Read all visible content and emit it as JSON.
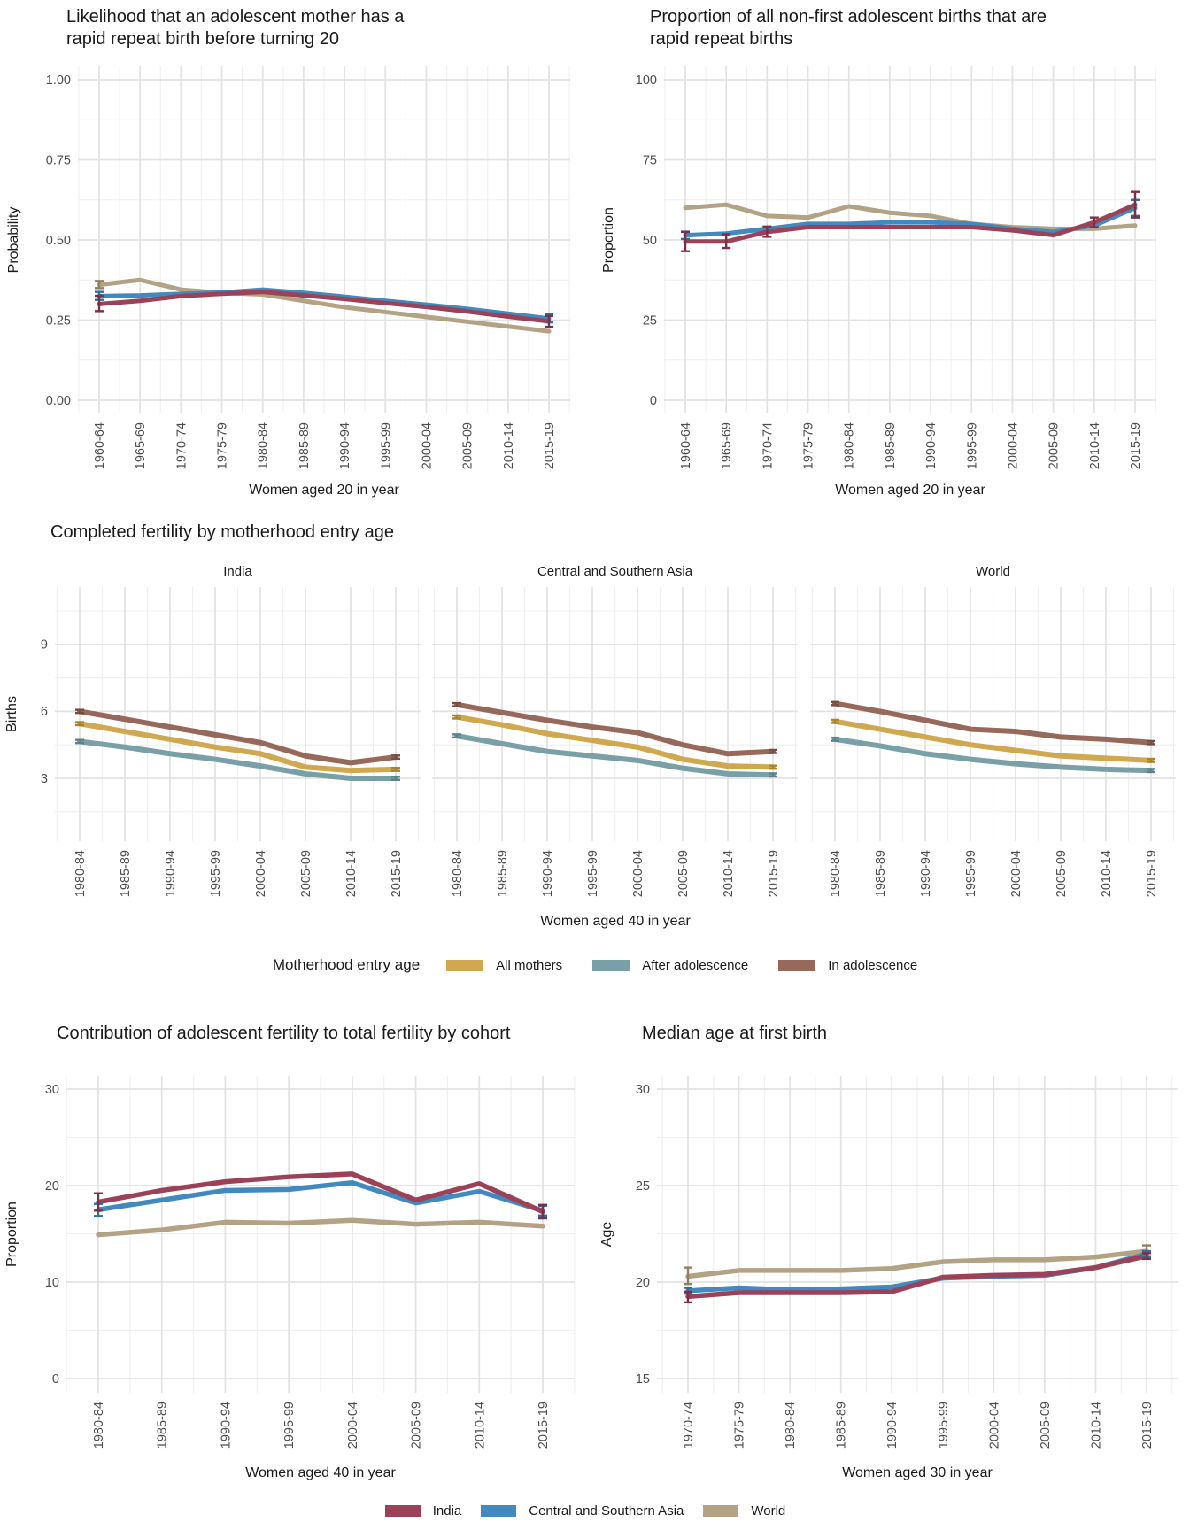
{
  "palette": {
    "india": "#9B4258",
    "india_dark": "#7C3048",
    "csa": "#4189BE",
    "csa_dark": "#2D6E9E",
    "world": "#B3A384",
    "world_dark": "#8F8063",
    "gold": "#D0A84F",
    "gold_dark": "#A9842F",
    "teal": "#7AA0A7",
    "teal_dark": "#5C838B",
    "brown": "#96695A",
    "brown_dark": "#774F41",
    "grid_major": "#E2E2E2",
    "grid_minor": "#EFEFEF",
    "text_dark": "#1A1A1A",
    "text_tick": "#4D4D4D"
  },
  "chart_data": [
    {
      "id": "rrb_likelihood",
      "type": "line",
      "title_lines": [
        "Likelihood that an adolescent mother has a",
        "rapid repeat birth before turning 20"
      ],
      "ylabel": "Probability",
      "xlabel": "Women aged 20 in year",
      "ylim": [
        0,
        1
      ],
      "grid": true,
      "legend_position": "bottom-shared",
      "yticks": [
        {
          "v": 0,
          "label": "0.00"
        },
        {
          "v": 0.25,
          "label": "0.25"
        },
        {
          "v": 0.5,
          "label": "0.50"
        },
        {
          "v": 0.75,
          "label": "0.75"
        },
        {
          "v": 1,
          "label": "1.00"
        }
      ],
      "categories": [
        "1960-64",
        "1965-69",
        "1970-74",
        "1975-79",
        "1980-84",
        "1985-89",
        "1990-94",
        "1995-99",
        "2000-04",
        "2005-09",
        "2010-14",
        "2015-19"
      ],
      "series": [
        {
          "name": "World",
          "color": "world",
          "err_color": "world_dark",
          "values": [
            0.36,
            0.375,
            0.345,
            0.335,
            0.33,
            0.31,
            0.29,
            0.275,
            0.26,
            0.245,
            0.23,
            0.215
          ],
          "errors": [
            {
              "i": 0,
              "lo": 0.35,
              "hi": 0.372
            }
          ]
        },
        {
          "name": "Central and Southern Asia",
          "color": "csa",
          "err_color": "csa_dark",
          "values": [
            0.325,
            0.327,
            0.332,
            0.336,
            0.345,
            0.335,
            0.323,
            0.31,
            0.298,
            0.285,
            0.27,
            0.255
          ],
          "errors": [
            {
              "i": 0,
              "lo": 0.313,
              "hi": 0.338
            },
            {
              "i": 11,
              "lo": 0.243,
              "hi": 0.268
            }
          ]
        },
        {
          "name": "India",
          "color": "india",
          "err_color": "india_dark",
          "values": [
            0.3,
            0.31,
            0.325,
            0.332,
            0.338,
            0.327,
            0.316,
            0.303,
            0.291,
            0.277,
            0.261,
            0.246
          ],
          "errors": [
            {
              "i": 0,
              "lo": 0.278,
              "hi": 0.326
            },
            {
              "i": 11,
              "lo": 0.229,
              "hi": 0.263
            }
          ]
        }
      ]
    },
    {
      "id": "rrb_proportion",
      "type": "line",
      "title_lines": [
        "Proportion of all non-first adolescent births that are",
        "rapid repeat births"
      ],
      "ylabel": "Proportion",
      "xlabel": "Women aged 20 in year",
      "ylim": [
        0,
        100
      ],
      "grid": true,
      "legend_position": "bottom-shared",
      "yticks": [
        {
          "v": 0,
          "label": "0"
        },
        {
          "v": 25,
          "label": "25"
        },
        {
          "v": 50,
          "label": "50"
        },
        {
          "v": 75,
          "label": "75"
        },
        {
          "v": 100,
          "label": "100"
        }
      ],
      "categories": [
        "1960-64",
        "1965-69",
        "1970-74",
        "1975-79",
        "1980-84",
        "1985-89",
        "1990-94",
        "1995-99",
        "2000-04",
        "2005-09",
        "2010-14",
        "2015-19"
      ],
      "series": [
        {
          "name": "World",
          "color": "world",
          "err_color": "world_dark",
          "values": [
            60,
            61,
            57.5,
            57,
            60.5,
            58.5,
            57.5,
            55,
            54,
            53.5,
            53.5,
            54.5
          ],
          "errors": []
        },
        {
          "name": "Central and Southern Asia",
          "color": "csa",
          "err_color": "csa_dark",
          "values": [
            51.5,
            52,
            53.5,
            55,
            55,
            55.5,
            55.5,
            55,
            53.5,
            52.5,
            54.5,
            60
          ],
          "errors": [
            {
              "i": 0,
              "lo": 50.3,
              "hi": 52.6
            },
            {
              "i": 11,
              "lo": 57.5,
              "hi": 62.5
            }
          ]
        },
        {
          "name": "India",
          "color": "india",
          "err_color": "india_dark",
          "values": [
            49.5,
            49.5,
            52.5,
            54,
            54,
            54,
            54,
            54,
            53,
            51.5,
            55.5,
            61
          ],
          "errors": [
            {
              "i": 0,
              "lo": 46.5,
              "hi": 52.5
            },
            {
              "i": 1,
              "lo": 47.5,
              "hi": 51.8
            },
            {
              "i": 2,
              "lo": 51,
              "hi": 54.2
            },
            {
              "i": 10,
              "lo": 54,
              "hi": 57
            },
            {
              "i": 11,
              "lo": 57,
              "hi": 65
            }
          ]
        }
      ]
    },
    {
      "id": "completed_fertility",
      "type": "line-facets",
      "title_lines": [
        "Completed fertility by motherhood entry age"
      ],
      "ylabel": "Births",
      "xlabel": "Women aged 40 in year",
      "ylim": [
        3,
        9
      ],
      "grid": true,
      "legend_title": "Motherhood entry age",
      "yticks": [
        {
          "v": 3,
          "label": "3"
        },
        {
          "v": 6,
          "label": "6"
        },
        {
          "v": 9,
          "label": "9"
        }
      ],
      "categories": [
        "1980-84",
        "1985-89",
        "1990-94",
        "1995-99",
        "2000-04",
        "2005-09",
        "2010-14",
        "2015-19"
      ],
      "facets": [
        {
          "label": "India",
          "series": [
            {
              "name": "All mothers",
              "color": "gold",
              "err_color": "gold_dark",
              "values": [
                5.45,
                5.1,
                4.75,
                4.4,
                4.1,
                3.5,
                3.35,
                3.4
              ],
              "errors": [
                {
                  "i": 0,
                  "lo": 5.38,
                  "hi": 5.52
                },
                {
                  "i": 7,
                  "lo": 3.33,
                  "hi": 3.47
                }
              ]
            },
            {
              "name": "After adolescence",
              "color": "teal",
              "err_color": "teal_dark",
              "values": [
                4.65,
                4.4,
                4.1,
                3.85,
                3.55,
                3.2,
                3.0,
                3.0
              ],
              "errors": [
                {
                  "i": 0,
                  "lo": 4.58,
                  "hi": 4.72
                },
                {
                  "i": 7,
                  "lo": 2.93,
                  "hi": 3.07
                }
              ]
            },
            {
              "name": "In adolescence",
              "color": "brown",
              "err_color": "brown_dark",
              "values": [
                6.0,
                5.65,
                5.3,
                4.95,
                4.6,
                4.0,
                3.7,
                3.95
              ],
              "errors": [
                {
                  "i": 0,
                  "lo": 5.93,
                  "hi": 6.07
                },
                {
                  "i": 7,
                  "lo": 3.88,
                  "hi": 4.02
                }
              ]
            }
          ]
        },
        {
          "label": "Central and Southern Asia",
          "series": [
            {
              "name": "All mothers",
              "color": "gold",
              "err_color": "gold_dark",
              "values": [
                5.75,
                5.4,
                5.0,
                4.7,
                4.4,
                3.85,
                3.55,
                3.5
              ],
              "errors": [
                {
                  "i": 0,
                  "lo": 5.68,
                  "hi": 5.82
                },
                {
                  "i": 7,
                  "lo": 3.43,
                  "hi": 3.57
                }
              ]
            },
            {
              "name": "After adolescence",
              "color": "teal",
              "err_color": "teal_dark",
              "values": [
                4.9,
                4.55,
                4.2,
                4.0,
                3.8,
                3.45,
                3.2,
                3.15
              ],
              "errors": [
                {
                  "i": 0,
                  "lo": 4.83,
                  "hi": 4.97
                },
                {
                  "i": 7,
                  "lo": 3.08,
                  "hi": 3.22
                }
              ]
            },
            {
              "name": "In adolescence",
              "color": "brown",
              "err_color": "brown_dark",
              "values": [
                6.3,
                5.95,
                5.6,
                5.3,
                5.05,
                4.5,
                4.1,
                4.2
              ],
              "errors": [
                {
                  "i": 0,
                  "lo": 6.23,
                  "hi": 6.37
                },
                {
                  "i": 7,
                  "lo": 4.13,
                  "hi": 4.27
                }
              ]
            }
          ]
        },
        {
          "label": "World",
          "series": [
            {
              "name": "All mothers",
              "color": "gold",
              "err_color": "gold_dark",
              "values": [
                5.55,
                5.2,
                4.85,
                4.5,
                4.25,
                4.0,
                3.9,
                3.8
              ],
              "errors": [
                {
                  "i": 0,
                  "lo": 5.48,
                  "hi": 5.62
                },
                {
                  "i": 7,
                  "lo": 3.73,
                  "hi": 3.87
                }
              ]
            },
            {
              "name": "After adolescence",
              "color": "teal",
              "err_color": "teal_dark",
              "values": [
                4.75,
                4.45,
                4.1,
                3.85,
                3.65,
                3.5,
                3.4,
                3.35
              ],
              "errors": [
                {
                  "i": 0,
                  "lo": 4.68,
                  "hi": 4.82
                },
                {
                  "i": 7,
                  "lo": 3.28,
                  "hi": 3.42
                }
              ]
            },
            {
              "name": "In adolescence",
              "color": "brown",
              "err_color": "brown_dark",
              "values": [
                6.35,
                6.0,
                5.6,
                5.2,
                5.1,
                4.85,
                4.75,
                4.6
              ],
              "errors": [
                {
                  "i": 0,
                  "lo": 6.28,
                  "hi": 6.42
                },
                {
                  "i": 7,
                  "lo": 4.53,
                  "hi": 4.67
                }
              ]
            }
          ]
        }
      ]
    },
    {
      "id": "contribution",
      "type": "line",
      "title_lines": [
        "Contribution of adolescent fertility to total fertility by cohort"
      ],
      "ylabel": "Proportion",
      "xlabel": "Women aged 40 in year",
      "ylim": [
        0,
        30
      ],
      "grid": true,
      "legend_position": "bottom-shared",
      "yticks": [
        {
          "v": 0,
          "label": "0"
        },
        {
          "v": 10,
          "label": "10"
        },
        {
          "v": 20,
          "label": "20"
        },
        {
          "v": 30,
          "label": "30"
        }
      ],
      "categories": [
        "1980-84",
        "1985-89",
        "1990-94",
        "1995-99",
        "2000-04",
        "2005-09",
        "2010-14",
        "2015-19"
      ],
      "series": [
        {
          "name": "World",
          "color": "world",
          "err_color": "world_dark",
          "values": [
            14.9,
            15.4,
            16.2,
            16.1,
            16.4,
            16.0,
            16.2,
            15.8
          ],
          "errors": []
        },
        {
          "name": "Central and Southern Asia",
          "color": "csa",
          "err_color": "csa_dark",
          "values": [
            17.5,
            18.5,
            19.5,
            19.6,
            20.3,
            18.2,
            19.4,
            17.4
          ],
          "errors": [
            {
              "i": 0,
              "lo": 16.85,
              "hi": 18.1
            },
            {
              "i": 7,
              "lo": 16.9,
              "hi": 17.9
            }
          ]
        },
        {
          "name": "India",
          "color": "india",
          "err_color": "india_dark",
          "values": [
            18.3,
            19.5,
            20.4,
            20.9,
            21.2,
            18.5,
            20.2,
            17.3
          ],
          "errors": [
            {
              "i": 0,
              "lo": 17.4,
              "hi": 19.2
            },
            {
              "i": 7,
              "lo": 16.6,
              "hi": 18.0
            }
          ]
        }
      ]
    },
    {
      "id": "median_age",
      "type": "line",
      "title_lines": [
        "Median age at first birth"
      ],
      "ylabel": "Age",
      "xlabel": "Women aged 30 in year",
      "ylim": [
        15,
        30
      ],
      "grid": true,
      "legend_position": "bottom-shared",
      "yticks": [
        {
          "v": 15,
          "label": "15"
        },
        {
          "v": 20,
          "label": "20"
        },
        {
          "v": 25,
          "label": "25"
        },
        {
          "v": 30,
          "label": "30"
        }
      ],
      "categories": [
        "1970-74",
        "1975-79",
        "1980-84",
        "1985-89",
        "1990-94",
        "1995-99",
        "2000-04",
        "2005-09",
        "2010-14",
        "2015-19"
      ],
      "series": [
        {
          "name": "World",
          "color": "world",
          "err_color": "world_dark",
          "values": [
            20.3,
            20.6,
            20.6,
            20.6,
            20.7,
            21.05,
            21.15,
            21.15,
            21.3,
            21.6
          ],
          "errors": [
            {
              "i": 0,
              "lo": 19.9,
              "hi": 20.75
            },
            {
              "i": 9,
              "lo": 21.35,
              "hi": 21.9
            }
          ]
        },
        {
          "name": "Central and Southern Asia",
          "color": "csa",
          "err_color": "csa_dark",
          "values": [
            19.55,
            19.7,
            19.6,
            19.65,
            19.75,
            20.2,
            20.3,
            20.35,
            20.75,
            21.45
          ],
          "errors": [
            {
              "i": 0,
              "lo": 19.4,
              "hi": 19.7
            },
            {
              "i": 9,
              "lo": 21.3,
              "hi": 21.6
            }
          ]
        },
        {
          "name": "India",
          "color": "india",
          "err_color": "india_dark",
          "values": [
            19.25,
            19.45,
            19.45,
            19.45,
            19.5,
            20.25,
            20.35,
            20.4,
            20.75,
            21.35
          ],
          "errors": [
            {
              "i": 0,
              "lo": 18.95,
              "hi": 19.5
            },
            {
              "i": 9,
              "lo": 21.2,
              "hi": 21.5
            }
          ]
        }
      ]
    }
  ],
  "legends": {
    "motherhood": {
      "title": "Motherhood entry age",
      "items": [
        {
          "label": "All mothers",
          "color": "gold"
        },
        {
          "label": "After adolescence",
          "color": "teal"
        },
        {
          "label": "In adolescence",
          "color": "brown"
        }
      ]
    },
    "region": {
      "items": [
        {
          "label": "India",
          "color": "india"
        },
        {
          "label": "Central and Southern Asia",
          "color": "csa"
        },
        {
          "label": "World",
          "color": "world"
        }
      ]
    }
  }
}
